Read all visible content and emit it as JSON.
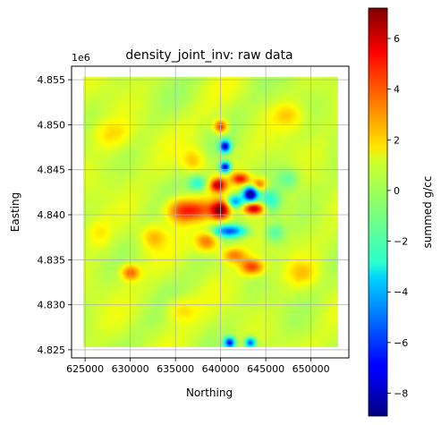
{
  "chart_data": {
    "type": "heatmap",
    "title": "density_joint_inv: raw data",
    "xlabel": "Northing",
    "ylabel": "Easting",
    "y_offset_label": "1e6",
    "xlim": [
      623500,
      654200
    ],
    "ylim": [
      4824100,
      4856500
    ],
    "data_extent": {
      "x": [
        624800,
        653000
      ],
      "y": [
        4825300,
        4855300
      ]
    },
    "x_ticks": [
      625000,
      630000,
      635000,
      640000,
      645000,
      650000
    ],
    "x_tick_labels": [
      "625000",
      "630000",
      "635000",
      "640000",
      "645000",
      "650000"
    ],
    "y_ticks": [
      4825000,
      4830000,
      4835000,
      4840000,
      4845000,
      4850000,
      4855000
    ],
    "y_tick_labels": [
      "4.825",
      "4.830",
      "4.835",
      "4.840",
      "4.845",
      "4.850",
      "4.855"
    ],
    "grid": true,
    "colormap": "jet",
    "colorbar": {
      "label": "summed g/cc",
      "range": [
        -8.9,
        7.2
      ],
      "ticks": [
        -8,
        -6,
        -4,
        -2,
        0,
        2,
        4,
        6
      ],
      "tick_labels": [
        "−8",
        "−6",
        "−4",
        "−2",
        "0",
        "2",
        "4",
        "6"
      ]
    },
    "background_value": 0.3,
    "anomalies": [
      {
        "x": 640000,
        "y": 4840500,
        "value": 6.5,
        "sx": 700,
        "sy": 700
      },
      {
        "x": 639700,
        "y": 4843300,
        "value": 5.5,
        "sx": 600,
        "sy": 500
      },
      {
        "x": 642200,
        "y": 4844000,
        "value": 4.5,
        "sx": 700,
        "sy": 450
      },
      {
        "x": 643700,
        "y": 4840700,
        "value": 6.0,
        "sx": 800,
        "sy": 450
      },
      {
        "x": 644300,
        "y": 4843400,
        "value": 3.5,
        "sx": 600,
        "sy": 500
      },
      {
        "x": 643300,
        "y": 4842300,
        "value": -9.2,
        "sx": 550,
        "sy": 550
      },
      {
        "x": 641600,
        "y": 4841500,
        "value": -5.0,
        "sx": 600,
        "sy": 500
      },
      {
        "x": 640500,
        "y": 4845300,
        "value": -8.0,
        "sx": 400,
        "sy": 400
      },
      {
        "x": 640500,
        "y": 4847600,
        "value": -7.5,
        "sx": 400,
        "sy": 450
      },
      {
        "x": 641000,
        "y": 4838200,
        "value": -5.5,
        "sx": 1200,
        "sy": 450
      },
      {
        "x": 640000,
        "y": 4849800,
        "value": 4.5,
        "sx": 500,
        "sy": 500
      },
      {
        "x": 637500,
        "y": 4840500,
        "value": 3.0,
        "sx": 1500,
        "sy": 800
      },
      {
        "x": 635500,
        "y": 4840500,
        "value": 3.0,
        "sx": 1200,
        "sy": 1000
      },
      {
        "x": 638500,
        "y": 4837000,
        "value": 3.5,
        "sx": 900,
        "sy": 800
      },
      {
        "x": 643500,
        "y": 4834200,
        "value": 4.0,
        "sx": 900,
        "sy": 600
      },
      {
        "x": 641500,
        "y": 4835500,
        "value": 3.0,
        "sx": 1000,
        "sy": 600
      },
      {
        "x": 630000,
        "y": 4833600,
        "value": 3.5,
        "sx": 700,
        "sy": 600
      },
      {
        "x": 637000,
        "y": 4846000,
        "value": 2.0,
        "sx": 900,
        "sy": 900
      },
      {
        "x": 645500,
        "y": 4841500,
        "value": -2.5,
        "sx": 800,
        "sy": 1000
      },
      {
        "x": 637500,
        "y": 4843500,
        "value": -2.5,
        "sx": 700,
        "sy": 600
      },
      {
        "x": 646000,
        "y": 4838000,
        "value": -2.0,
        "sx": 800,
        "sy": 800
      },
      {
        "x": 641000,
        "y": 4825800,
        "value": -7.0,
        "sx": 400,
        "sy": 400
      },
      {
        "x": 643300,
        "y": 4825800,
        "value": -6.0,
        "sx": 400,
        "sy": 400
      },
      {
        "x": 632500,
        "y": 4837500,
        "value": 2.0,
        "sx": 900,
        "sy": 900
      },
      {
        "x": 647500,
        "y": 4844000,
        "value": -1.5,
        "sx": 800,
        "sy": 800
      },
      {
        "x": 635500,
        "y": 4829500,
        "value": 1.5,
        "sx": 1200,
        "sy": 1000
      },
      {
        "x": 649000,
        "y": 4833500,
        "value": 1.5,
        "sx": 1200,
        "sy": 1000
      },
      {
        "x": 628000,
        "y": 4849000,
        "value": 1.5,
        "sx": 1500,
        "sy": 1200
      },
      {
        "x": 647500,
        "y": 4851000,
        "value": 1.5,
        "sx": 1200,
        "sy": 1000
      },
      {
        "x": 626500,
        "y": 4838000,
        "value": 1.2,
        "sx": 1000,
        "sy": 1200
      }
    ]
  }
}
